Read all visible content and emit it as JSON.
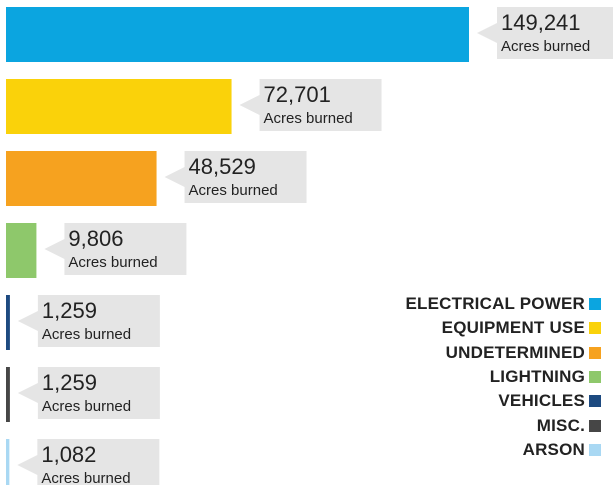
{
  "chart_data": {
    "type": "bar",
    "orientation": "horizontal",
    "categories": [
      "ELECTRICAL POWER",
      "EQUIPMENT USE",
      "UNDETERMINED",
      "LIGHTNING",
      "VEHICLES",
      "MISC.",
      "ARSON"
    ],
    "values": [
      149241,
      72701,
      48529,
      9806,
      1259,
      1259,
      1082
    ],
    "value_labels": [
      "149,241",
      "72,701",
      "48,529",
      "9,806",
      "1,259",
      "1,259",
      "1,082"
    ],
    "unit_label": "Acres burned",
    "colors": [
      "#0ba5e0",
      "#fad20a",
      "#f6a21f",
      "#8ec86b",
      "#1d4a80",
      "#464646",
      "#a9d8f3"
    ],
    "grid": false,
    "legend_position": "bottom-right"
  }
}
